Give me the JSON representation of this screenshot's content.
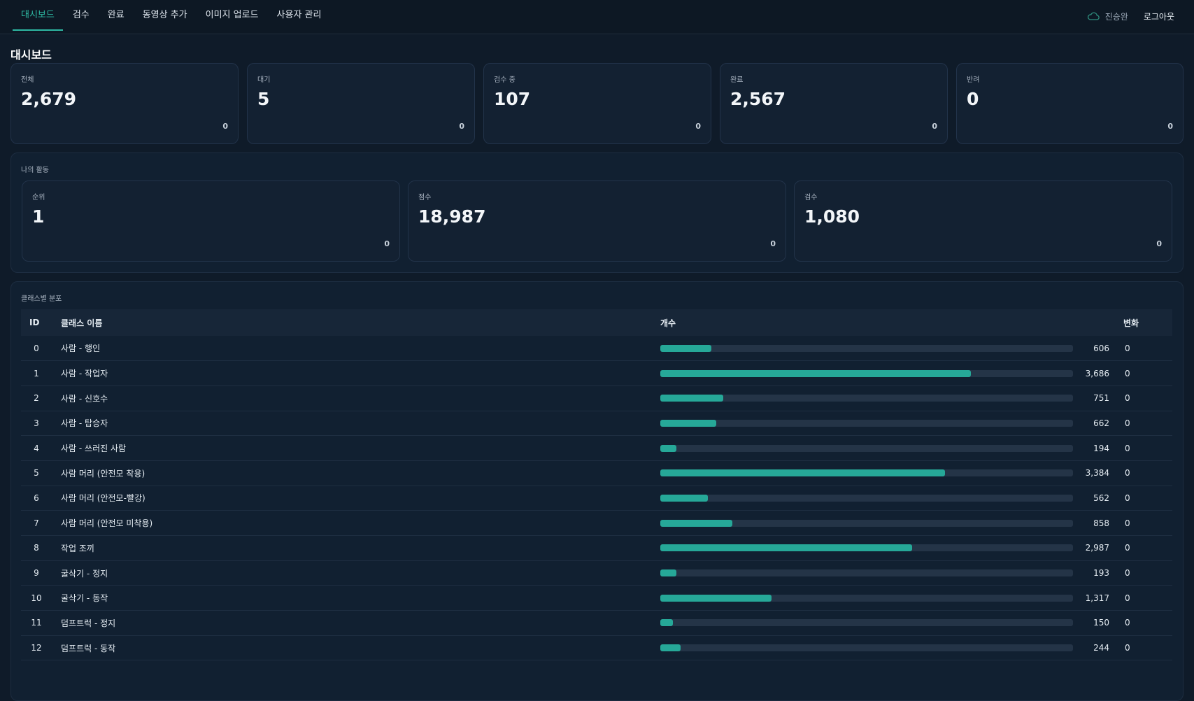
{
  "nav": {
    "items": [
      {
        "label": "대시보드",
        "active": true
      },
      {
        "label": "검수",
        "active": false
      },
      {
        "label": "완료",
        "active": false
      },
      {
        "label": "동영상 추가",
        "active": false
      },
      {
        "label": "이미지 업로드",
        "active": false
      },
      {
        "label": "사용자 관리",
        "active": false
      }
    ]
  },
  "user": {
    "name": "진승완",
    "icon": "cloud-icon",
    "logout_label": "로그아웃"
  },
  "page_title": "대시보드",
  "stats": [
    {
      "label": "전체",
      "value": "2,679",
      "change": "0"
    },
    {
      "label": "대기",
      "value": "5",
      "change": "0"
    },
    {
      "label": "검수 중",
      "value": "107",
      "change": "0"
    },
    {
      "label": "완료",
      "value": "2,567",
      "change": "0"
    },
    {
      "label": "반려",
      "value": "0",
      "change": "0"
    }
  ],
  "activity": {
    "title": "나의 활동",
    "cards": [
      {
        "label": "순위",
        "value": "1",
        "change": "0"
      },
      {
        "label": "점수",
        "value": "18,987",
        "change": "0"
      },
      {
        "label": "검수",
        "value": "1,080",
        "change": "0"
      }
    ]
  },
  "distribution": {
    "title": "클래스별 분포",
    "headers": {
      "id": "ID",
      "name": "클래스 이름",
      "count": "개수",
      "change": "변화"
    },
    "max_count": 4900,
    "rows": [
      {
        "id": "0",
        "name": "사람 - 행인",
        "count": 606,
        "count_label": "606",
        "change": "0"
      },
      {
        "id": "1",
        "name": "사람 - 작업자",
        "count": 3686,
        "count_label": "3,686",
        "change": "0"
      },
      {
        "id": "2",
        "name": "사람 - 신호수",
        "count": 751,
        "count_label": "751",
        "change": "0"
      },
      {
        "id": "3",
        "name": "사람 - 탑승자",
        "count": 662,
        "count_label": "662",
        "change": "0"
      },
      {
        "id": "4",
        "name": "사람 - 쓰러진 사람",
        "count": 194,
        "count_label": "194",
        "change": "0"
      },
      {
        "id": "5",
        "name": "사람 머리 (안전모 착용)",
        "count": 3384,
        "count_label": "3,384",
        "change": "0"
      },
      {
        "id": "6",
        "name": "사람 머리 (안전모-빨강)",
        "count": 562,
        "count_label": "562",
        "change": "0"
      },
      {
        "id": "7",
        "name": "사람 머리 (안전모 미착용)",
        "count": 858,
        "count_label": "858",
        "change": "0"
      },
      {
        "id": "8",
        "name": "작업 조끼",
        "count": 2987,
        "count_label": "2,987",
        "change": "0"
      },
      {
        "id": "9",
        "name": "굴삭기 - 정지",
        "count": 193,
        "count_label": "193",
        "change": "0"
      },
      {
        "id": "10",
        "name": "굴삭기 - 동작",
        "count": 1317,
        "count_label": "1,317",
        "change": "0"
      },
      {
        "id": "11",
        "name": "덤프트럭 - 정지",
        "count": 150,
        "count_label": "150",
        "change": "0"
      },
      {
        "id": "12",
        "name": "덤프트럭 - 동작",
        "count": 244,
        "count_label": "244",
        "change": "0"
      }
    ]
  },
  "colors": {
    "accent": "#26a898",
    "background": "#0f1b29",
    "card": "#132132"
  }
}
